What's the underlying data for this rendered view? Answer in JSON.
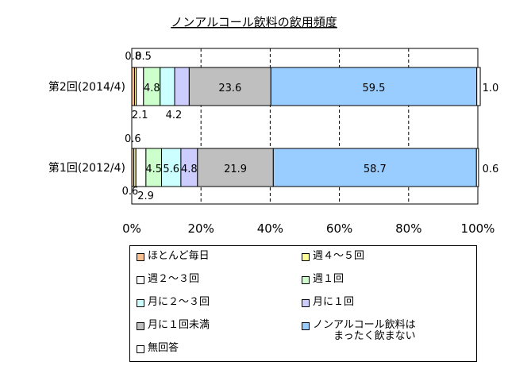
{
  "chart_data": {
    "type": "bar",
    "orientation": "horizontal",
    "stacked": true,
    "percent": true,
    "title": "ノンアルコール飲料の飲用頻度",
    "categories": [
      "第2回(2014/4)",
      "第1回(2012/4)"
    ],
    "xlim": [
      0,
      100
    ],
    "x_ticks": [
      "0%",
      "20%",
      "40%",
      "60%",
      "80%",
      "100%"
    ],
    "grid": true,
    "legend_position": "bottom",
    "series": [
      {
        "name": "ほとんど毎日",
        "color": "#fac090",
        "values": [
          0.8,
          0.6
        ]
      },
      {
        "name": "週４～５回",
        "color": "#ffff99",
        "values": [
          0.5,
          0.6
        ]
      },
      {
        "name": "週２～３回",
        "color": "#ffffff",
        "values": [
          2.1,
          2.9
        ]
      },
      {
        "name": "週１回",
        "color": "#ccffcc",
        "values": [
          4.8,
          4.5
        ]
      },
      {
        "name": "月に２～３回",
        "color": "#ccffff",
        "values": [
          4.2,
          5.6
        ]
      },
      {
        "name": "月に１回",
        "color": "#ccccff",
        "values": [
          4.2,
          4.8
        ]
      },
      {
        "name": "月に１回未満",
        "color": "#bfbfbf",
        "values": [
          23.6,
          21.9
        ]
      },
      {
        "name": "ノンアルコール飲料は\nまったく飲まない",
        "color": "#99ccff",
        "values": [
          59.5,
          58.7
        ]
      },
      {
        "name": "無回答",
        "color": "#ffffff",
        "values": [
          1.0,
          0.6
        ]
      }
    ],
    "data_labels": [
      [
        "0.8",
        "0.5",
        "2.1",
        "4.8",
        "4.2",
        "",
        "23.6",
        "59.5",
        "1.0"
      ],
      [
        "0.6",
        "0.6",
        "2.9",
        "4.5",
        "5.6",
        "4.8",
        "21.9",
        "58.7",
        "0.6"
      ]
    ]
  }
}
